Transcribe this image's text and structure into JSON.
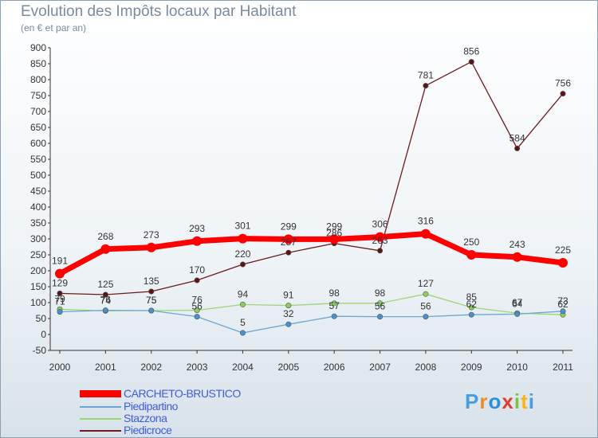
{
  "title": "Evolution des Impôts locaux par Habitant",
  "subtitle": "(en € et par an)",
  "logo": {
    "text": [
      "P",
      "r",
      "o",
      "x",
      "i",
      "t",
      "i"
    ],
    "colors": [
      "#4a9be0",
      "#f08a24",
      "#2e8fd6",
      "#e23b2e",
      "#7cc242",
      "#f6b31e",
      "#4a9be0"
    ]
  },
  "chart_data": {
    "type": "line",
    "x": [
      2000,
      2001,
      2002,
      2003,
      2004,
      2005,
      2006,
      2007,
      2008,
      2009,
      2010,
      2011
    ],
    "ylim": [
      -50,
      900
    ],
    "yticks": [
      -50,
      0,
      50,
      100,
      150,
      200,
      250,
      300,
      350,
      400,
      450,
      500,
      550,
      600,
      650,
      700,
      750,
      800,
      850,
      900
    ],
    "grid": false,
    "legend_position": "bottom-left",
    "series": [
      {
        "name": "Piedicroce",
        "color": "#6e1a1a",
        "marker": "#5a1414",
        "labels": [
          "129",
          "125",
          "135",
          "170",
          "220",
          "257",
          "286",
          "263",
          "781",
          "856",
          "584",
          "756"
        ],
        "values": [
          129,
          125,
          135,
          170,
          220,
          257,
          286,
          263,
          781,
          856,
          584,
          756
        ],
        "label_pos": "above"
      },
      {
        "name": "Stazzona",
        "color": "#9ad86e",
        "marker": "#8ccf5a",
        "labels": [
          "79",
          "74",
          "75",
          "76",
          "94",
          "91",
          "98",
          "98",
          "127",
          "85",
          "67",
          "62"
        ],
        "values": [
          79,
          74,
          75,
          76,
          94,
          91,
          98,
          98,
          127,
          85,
          67,
          62
        ],
        "label_pos": "above"
      },
      {
        "name": "Piedipartino",
        "color": "#6aa6d6",
        "marker": "#4a90cc",
        "labels": [
          "71",
          "76",
          "75",
          "56",
          "5",
          "32",
          "57",
          "56",
          "56",
          "62",
          "64",
          "73"
        ],
        "values": [
          71,
          76,
          75,
          56,
          5,
          32,
          57,
          56,
          56,
          62,
          64,
          73
        ],
        "label_pos": "above"
      },
      {
        "name": "CARCHETO-BRUSTICO",
        "color": "#ff0000",
        "marker": "#ff0000",
        "labels": [
          "191",
          "268",
          "273",
          "293",
          "301",
          "299",
          "299",
          "306",
          "316",
          "250",
          "243",
          "225"
        ],
        "values": [
          191,
          268,
          273,
          293,
          301,
          299,
          299,
          306,
          316,
          250,
          243,
          225
        ],
        "label_pos": "above"
      }
    ],
    "legend": [
      "CARCHETO-BRUSTICO",
      "Piedipartino",
      "Stazzona",
      "Piedicroce"
    ]
  }
}
